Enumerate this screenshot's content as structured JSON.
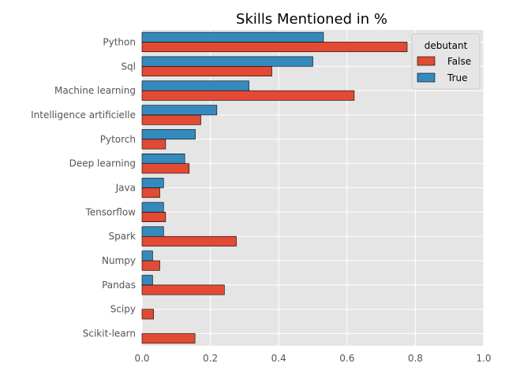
{
  "chart_data": {
    "type": "bar",
    "orientation": "horizontal",
    "title": "Skills Mentioned in %",
    "xlabel": "",
    "ylabel": "",
    "xlim": [
      0,
      1.0
    ],
    "x_ticks": [
      "0.0",
      "0.2",
      "0.4",
      "0.6",
      "0.8",
      "1.0"
    ],
    "categories": [
      "Python",
      "Sql",
      "Machine learning",
      "Intelligence artificielle",
      "Pytorch",
      "Deep learning",
      "Java",
      "Tensorflow",
      "Spark",
      "Numpy",
      "Pandas",
      "Scipy",
      "Scikit-learn"
    ],
    "legend_title": "debutant",
    "legend_position": "top-right",
    "grid": true,
    "background": "#e5e5e5",
    "series": [
      {
        "name": "False",
        "color": "#e24a33",
        "values": [
          0.776,
          0.38,
          0.621,
          0.172,
          0.069,
          0.138,
          0.052,
          0.069,
          0.276,
          0.052,
          0.241,
          0.034,
          0.155
        ]
      },
      {
        "name": "True",
        "color": "#348abd",
        "values": [
          0.531,
          0.5,
          0.313,
          0.219,
          0.156,
          0.125,
          0.063,
          0.063,
          0.063,
          0.031,
          0.031,
          0.0,
          0.0
        ]
      }
    ]
  }
}
